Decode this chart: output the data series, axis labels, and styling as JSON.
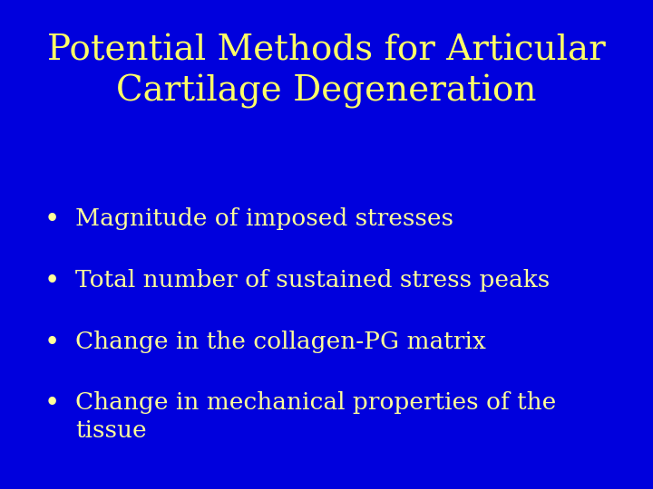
{
  "background_color": "#0000DD",
  "title_line1": "Potential Methods for Articular",
  "title_line2": "Cartilage Degeneration",
  "title_color": "#FFFF66",
  "title_fontsize": 28,
  "bullet_color": "#FFFF99",
  "bullet_fontsize": 19,
  "bullets": [
    "Magnitude of imposed stresses",
    "Total number of sustained stress peaks",
    "Change in the collagen-PG matrix",
    "Change in mechanical properties of the\ntissue"
  ],
  "bullet_symbol": "•",
  "fig_width": 7.2,
  "fig_height": 5.4,
  "fig_dpi": 100
}
